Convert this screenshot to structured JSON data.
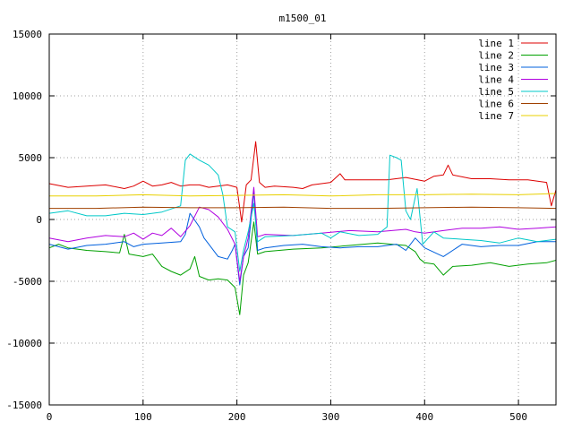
{
  "chart_data": {
    "type": "line",
    "title": "m1500_01",
    "xlabel": "",
    "ylabel": "",
    "xlim": [
      0,
      540
    ],
    "ylim": [
      -15000,
      15000
    ],
    "xticks": [
      0,
      100,
      200,
      300,
      400,
      500
    ],
    "yticks": [
      -15000,
      -10000,
      -5000,
      0,
      5000,
      10000,
      15000
    ],
    "grid": true,
    "legend_position": "top-right",
    "series": [
      {
        "name": "line 1",
        "color": "#dd0000",
        "points": [
          [
            0,
            2900
          ],
          [
            20,
            2600
          ],
          [
            40,
            2700
          ],
          [
            60,
            2800
          ],
          [
            80,
            2500
          ],
          [
            90,
            2700
          ],
          [
            100,
            3100
          ],
          [
            110,
            2700
          ],
          [
            120,
            2800
          ],
          [
            130,
            3000
          ],
          [
            140,
            2700
          ],
          [
            150,
            2800
          ],
          [
            160,
            2800
          ],
          [
            170,
            2600
          ],
          [
            180,
            2700
          ],
          [
            190,
            2800
          ],
          [
            200,
            2600
          ],
          [
            205,
            -200
          ],
          [
            210,
            2800
          ],
          [
            215,
            3200
          ],
          [
            220,
            6300
          ],
          [
            224,
            3000
          ],
          [
            230,
            2600
          ],
          [
            240,
            2700
          ],
          [
            260,
            2600
          ],
          [
            270,
            2500
          ],
          [
            280,
            2800
          ],
          [
            290,
            2900
          ],
          [
            300,
            3000
          ],
          [
            310,
            3700
          ],
          [
            315,
            3200
          ],
          [
            320,
            3200
          ],
          [
            340,
            3200
          ],
          [
            360,
            3200
          ],
          [
            380,
            3400
          ],
          [
            400,
            3100
          ],
          [
            410,
            3500
          ],
          [
            420,
            3600
          ],
          [
            425,
            4400
          ],
          [
            430,
            3600
          ],
          [
            450,
            3300
          ],
          [
            470,
            3300
          ],
          [
            490,
            3200
          ],
          [
            510,
            3200
          ],
          [
            530,
            3000
          ],
          [
            535,
            1100
          ],
          [
            540,
            2400
          ]
        ]
      },
      {
        "name": "line 2",
        "color": "#00a000",
        "points": [
          [
            0,
            -2300
          ],
          [
            10,
            -2000
          ],
          [
            20,
            -2300
          ],
          [
            40,
            -2500
          ],
          [
            60,
            -2600
          ],
          [
            75,
            -2700
          ],
          [
            80,
            -1200
          ],
          [
            85,
            -2800
          ],
          [
            100,
            -3000
          ],
          [
            110,
            -2800
          ],
          [
            120,
            -3800
          ],
          [
            130,
            -4200
          ],
          [
            140,
            -4500
          ],
          [
            150,
            -4000
          ],
          [
            155,
            -3000
          ],
          [
            160,
            -4600
          ],
          [
            170,
            -4900
          ],
          [
            180,
            -4800
          ],
          [
            190,
            -4900
          ],
          [
            198,
            -5500
          ],
          [
            203,
            -7700
          ],
          [
            207,
            -4500
          ],
          [
            212,
            -3500
          ],
          [
            218,
            -200
          ],
          [
            222,
            -2800
          ],
          [
            230,
            -2600
          ],
          [
            260,
            -2400
          ],
          [
            290,
            -2300
          ],
          [
            320,
            -2100
          ],
          [
            350,
            -1900
          ],
          [
            380,
            -2100
          ],
          [
            390,
            -2600
          ],
          [
            395,
            -3200
          ],
          [
            400,
            -3500
          ],
          [
            410,
            -3600
          ],
          [
            420,
            -4500
          ],
          [
            430,
            -3800
          ],
          [
            450,
            -3700
          ],
          [
            470,
            -3500
          ],
          [
            490,
            -3800
          ],
          [
            510,
            -3600
          ],
          [
            530,
            -3500
          ],
          [
            540,
            -3300
          ]
        ]
      },
      {
        "name": "line 3",
        "color": "#0060dd",
        "points": [
          [
            0,
            -2000
          ],
          [
            20,
            -2400
          ],
          [
            40,
            -2100
          ],
          [
            60,
            -2000
          ],
          [
            80,
            -1800
          ],
          [
            90,
            -2200
          ],
          [
            100,
            -2000
          ],
          [
            120,
            -1900
          ],
          [
            140,
            -1800
          ],
          [
            145,
            -1200
          ],
          [
            150,
            500
          ],
          [
            160,
            -600
          ],
          [
            165,
            -1500
          ],
          [
            170,
            -2000
          ],
          [
            180,
            -3000
          ],
          [
            190,
            -3200
          ],
          [
            195,
            -2500
          ],
          [
            198,
            -2000
          ],
          [
            203,
            -5300
          ],
          [
            207,
            -3000
          ],
          [
            212,
            -2300
          ],
          [
            218,
            2300
          ],
          [
            222,
            -2500
          ],
          [
            230,
            -2300
          ],
          [
            250,
            -2100
          ],
          [
            270,
            -2000
          ],
          [
            290,
            -2200
          ],
          [
            310,
            -2300
          ],
          [
            330,
            -2200
          ],
          [
            350,
            -2200
          ],
          [
            370,
            -2000
          ],
          [
            380,
            -2500
          ],
          [
            390,
            -1500
          ],
          [
            400,
            -2300
          ],
          [
            420,
            -3000
          ],
          [
            440,
            -2000
          ],
          [
            460,
            -2200
          ],
          [
            480,
            -2100
          ],
          [
            500,
            -2100
          ],
          [
            520,
            -1800
          ],
          [
            540,
            -1800
          ]
        ]
      },
      {
        "name": "line 4",
        "color": "#b000e0",
        "points": [
          [
            0,
            -1500
          ],
          [
            20,
            -1800
          ],
          [
            40,
            -1500
          ],
          [
            60,
            -1300
          ],
          [
            80,
            -1400
          ],
          [
            90,
            -1100
          ],
          [
            100,
            -1600
          ],
          [
            110,
            -1100
          ],
          [
            120,
            -1300
          ],
          [
            130,
            -700
          ],
          [
            140,
            -1400
          ],
          [
            150,
            -500
          ],
          [
            160,
            1000
          ],
          [
            170,
            800
          ],
          [
            180,
            200
          ],
          [
            190,
            -800
          ],
          [
            198,
            -2000
          ],
          [
            203,
            -5000
          ],
          [
            207,
            -3000
          ],
          [
            212,
            -1500
          ],
          [
            218,
            2600
          ],
          [
            222,
            -1400
          ],
          [
            230,
            -1200
          ],
          [
            260,
            -1300
          ],
          [
            290,
            -1100
          ],
          [
            320,
            -900
          ],
          [
            350,
            -1000
          ],
          [
            380,
            -800
          ],
          [
            390,
            -1000
          ],
          [
            400,
            -1100
          ],
          [
            420,
            -900
          ],
          [
            440,
            -700
          ],
          [
            460,
            -700
          ],
          [
            480,
            -600
          ],
          [
            500,
            -800
          ],
          [
            520,
            -700
          ],
          [
            540,
            -600
          ]
        ]
      },
      {
        "name": "line 5",
        "color": "#00c8c8",
        "points": [
          [
            0,
            500
          ],
          [
            20,
            700
          ],
          [
            40,
            300
          ],
          [
            60,
            300
          ],
          [
            80,
            500
          ],
          [
            100,
            400
          ],
          [
            120,
            600
          ],
          [
            140,
            1100
          ],
          [
            145,
            4800
          ],
          [
            150,
            5300
          ],
          [
            160,
            4800
          ],
          [
            170,
            4400
          ],
          [
            180,
            3600
          ],
          [
            185,
            2000
          ],
          [
            190,
            -600
          ],
          [
            198,
            -1000
          ],
          [
            203,
            -4200
          ],
          [
            207,
            -2500
          ],
          [
            212,
            -1000
          ],
          [
            218,
            1300
          ],
          [
            222,
            -1800
          ],
          [
            230,
            -1400
          ],
          [
            260,
            -1300
          ],
          [
            290,
            -1100
          ],
          [
            300,
            -1500
          ],
          [
            310,
            -1000
          ],
          [
            330,
            -1300
          ],
          [
            350,
            -1200
          ],
          [
            360,
            -600
          ],
          [
            363,
            5200
          ],
          [
            370,
            5000
          ],
          [
            375,
            4800
          ],
          [
            380,
            700
          ],
          [
            385,
            0
          ],
          [
            392,
            2500
          ],
          [
            398,
            -2000
          ],
          [
            410,
            -1000
          ],
          [
            420,
            -1500
          ],
          [
            440,
            -1600
          ],
          [
            460,
            -1700
          ],
          [
            480,
            -1900
          ],
          [
            500,
            -1500
          ],
          [
            520,
            -1800
          ],
          [
            540,
            -1600
          ]
        ]
      },
      {
        "name": "line 6",
        "color": "#a04000",
        "points": [
          [
            0,
            900
          ],
          [
            50,
            900
          ],
          [
            100,
            1000
          ],
          [
            150,
            950
          ],
          [
            200,
            950
          ],
          [
            250,
            1000
          ],
          [
            300,
            900
          ],
          [
            350,
            900
          ],
          [
            400,
            950
          ],
          [
            450,
            1000
          ],
          [
            500,
            950
          ],
          [
            540,
            900
          ]
        ]
      },
      {
        "name": "line 7",
        "color": "#e8d000",
        "points": [
          [
            0,
            1900
          ],
          [
            50,
            1900
          ],
          [
            100,
            2000
          ],
          [
            150,
            1900
          ],
          [
            200,
            1950
          ],
          [
            250,
            2000
          ],
          [
            300,
            1900
          ],
          [
            350,
            2000
          ],
          [
            400,
            2000
          ],
          [
            450,
            2050
          ],
          [
            500,
            2000
          ],
          [
            540,
            2100
          ]
        ]
      }
    ]
  }
}
